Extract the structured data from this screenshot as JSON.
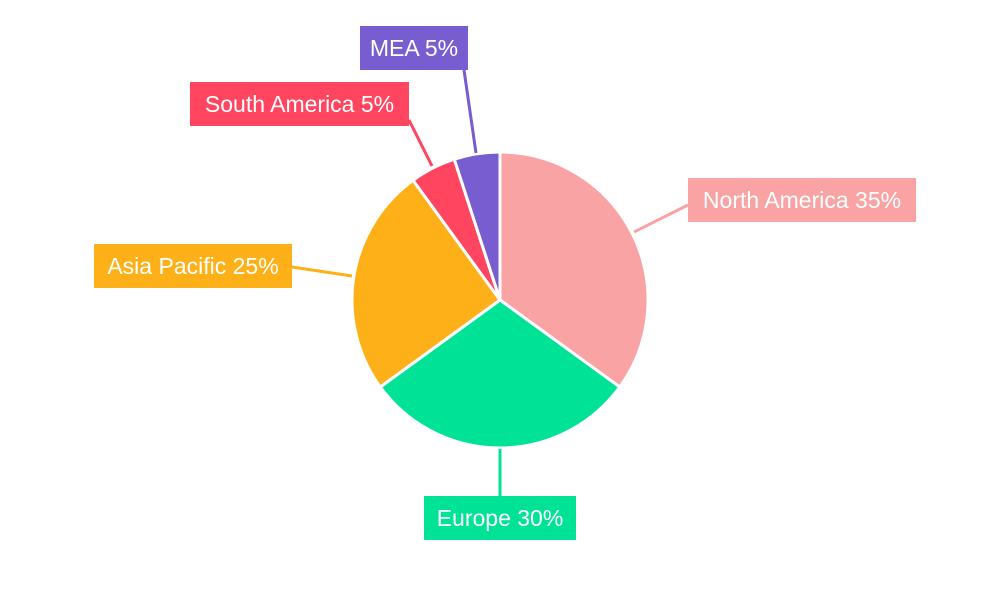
{
  "chart_data": {
    "type": "pie",
    "title": "",
    "start_angle_deg": 0,
    "direction": "clockwise",
    "categories": [
      "North America",
      "Europe",
      "Asia Pacific",
      "South America",
      "MEA"
    ],
    "values": [
      35,
      30,
      25,
      5,
      5
    ],
    "labels": [
      "North America 35%",
      "Europe 30%",
      "Asia Pacific 25%",
      "South America 5%",
      "MEA 5%"
    ],
    "colors": [
      "#F9A3A4",
      "#00E396",
      "#FEB019",
      "#FF4560",
      "#775DD0"
    ],
    "legend": "none"
  }
}
